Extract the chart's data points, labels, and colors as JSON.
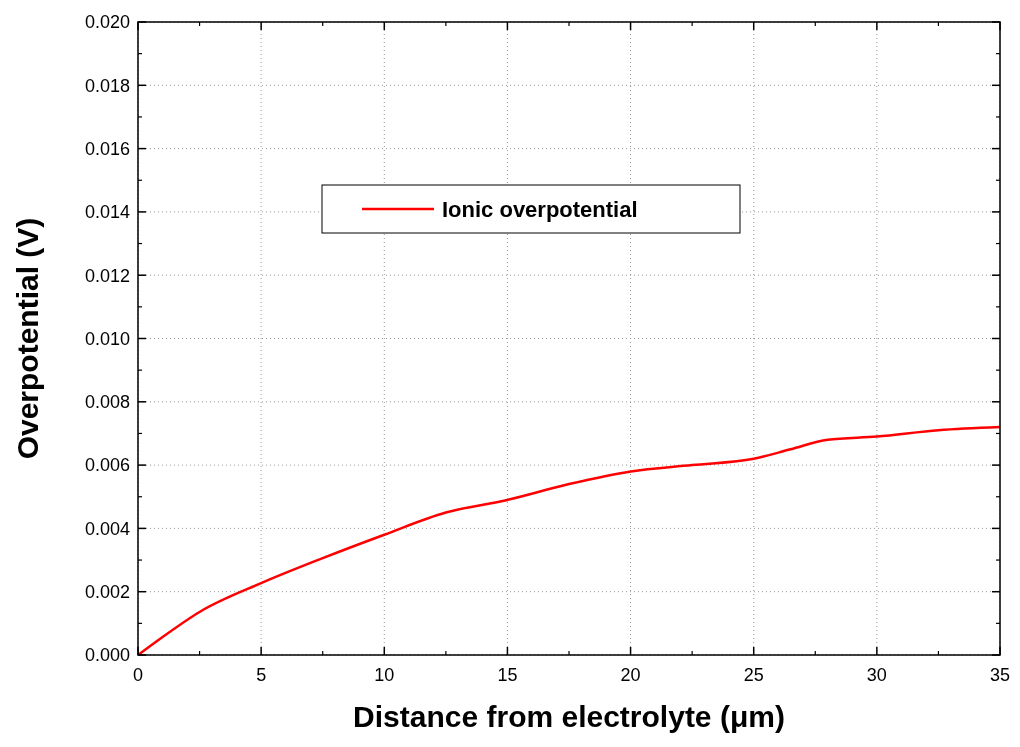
{
  "chart_data": {
    "type": "line",
    "xlabel": "Distance from electrolyte (μm)",
    "ylabel": "Overpotential (V)",
    "xlim": [
      0,
      35
    ],
    "xticks": [
      0,
      5,
      10,
      15,
      20,
      25,
      30,
      35
    ],
    "ylim": [
      0,
      0.02
    ],
    "yticks": [
      {
        "value": 0,
        "label": "0.000"
      },
      {
        "value": 0.002,
        "label": "0.002"
      },
      {
        "value": 0.004,
        "label": "0.004"
      },
      {
        "value": 0.006,
        "label": "0.006"
      },
      {
        "value": 0.008,
        "label": "0.008"
      },
      {
        "value": 0.01,
        "label": "0.010"
      },
      {
        "value": 0.012,
        "label": "0.012"
      },
      {
        "value": 0.014,
        "label": "0.014"
      },
      {
        "value": 0.016,
        "label": "0.016"
      },
      {
        "value": 0.018,
        "label": "0.018"
      },
      {
        "value": 0.02,
        "label": "0.020"
      }
    ],
    "grid": true,
    "legend": "top",
    "line_style": "solid",
    "marker": "none",
    "series": [
      {
        "name": "Ionic overpotential",
        "color": "#ff0000",
        "x": [
          0,
          1,
          2.5,
          5,
          7.5,
          10,
          12.5,
          15,
          17.5,
          20,
          22.5,
          25,
          26.5,
          28,
          30,
          32.5,
          35
        ],
        "values": [
          0,
          0.00057,
          0.00136,
          0.00227,
          0.00306,
          0.0038,
          0.0045,
          0.0049,
          0.0054,
          0.0058,
          0.006,
          0.0062,
          0.0065,
          0.0068,
          0.0069,
          0.0071,
          0.0072
        ]
      }
    ]
  }
}
